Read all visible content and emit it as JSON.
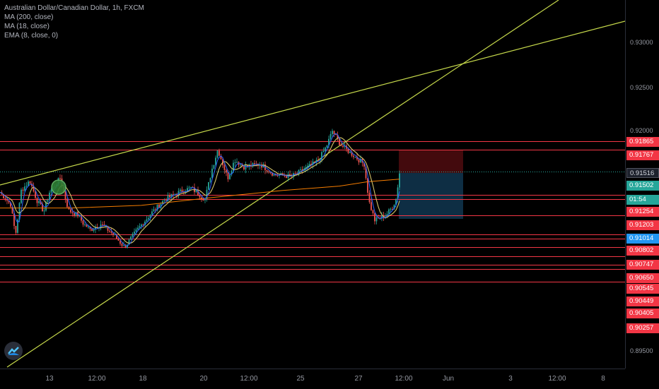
{
  "legend": {
    "title": "Australian Dollar/Canadian Dollar, 1h, FXCM",
    "indicators": [
      "MA (200, close)",
      "MA (18, close)",
      "EMA (8, close, 0)"
    ]
  },
  "price_axis": {
    "labels": [
      "0.93000",
      "0.92500",
      "0.92000",
      "0.89500"
    ],
    "tags": [
      {
        "value": "0.91865",
        "color": "#f23645"
      },
      {
        "value": "0.91767",
        "color": "#f23645"
      },
      {
        "value": "0.91516",
        "color": "#1e222d"
      },
      {
        "value": "0.91502",
        "color": "#26a69a"
      },
      {
        "value": "01:54",
        "color": "#26a69a"
      },
      {
        "value": "0.91254",
        "color": "#f23645"
      },
      {
        "value": "0.91203",
        "color": "#f23645"
      },
      {
        "value": "0.91014",
        "color": "#2196f3"
      },
      {
        "value": "0.90802",
        "color": "#f23645"
      },
      {
        "value": "0.90747",
        "color": "#f23645"
      },
      {
        "value": "0.90650",
        "color": "#f23645"
      },
      {
        "value": "0.90545",
        "color": "#f23645"
      },
      {
        "value": "0.90449",
        "color": "#f23645"
      },
      {
        "value": "0.90405",
        "color": "#f23645"
      },
      {
        "value": "0.90257",
        "color": "#f23645"
      }
    ]
  },
  "time_axis": {
    "labels": [
      "13",
      "12:00",
      "18",
      "20",
      "12:00",
      "25",
      "27",
      "12:00",
      "Jun",
      "3",
      "12:00",
      "8"
    ]
  },
  "colors": {
    "up": "#26a69a",
    "down": "#ef5350",
    "ma200": "#f57c00",
    "ma18": "#d4c46b",
    "ema8": "#2962ff",
    "trendline": "#c6d94b",
    "hline": "#f23645",
    "stop_zone": "#4a0b0e",
    "target_zone": "#0f3048"
  },
  "logo": "tradingview-cloud-icon",
  "marker": "green-circle-marker"
}
